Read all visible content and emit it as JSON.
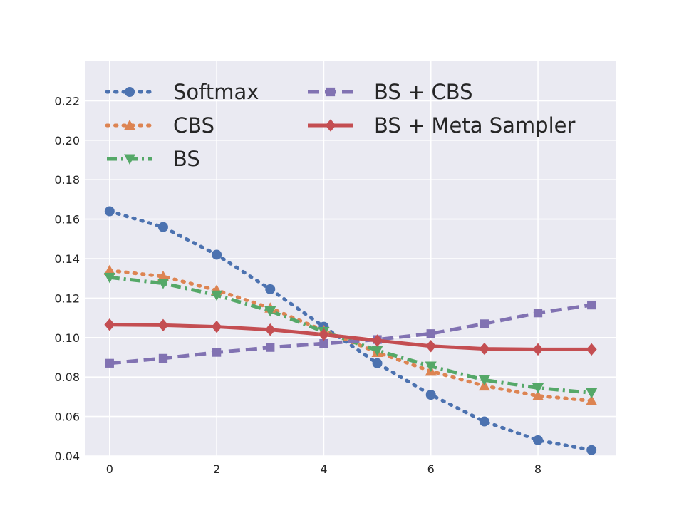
{
  "chart_data": {
    "type": "line",
    "title": "",
    "xlabel": "",
    "ylabel": "",
    "x": [
      0,
      1,
      2,
      3,
      4,
      5,
      6,
      7,
      8,
      9
    ],
    "xlim": [
      -0.45,
      9.45
    ],
    "ylim": [
      0.04,
      0.24
    ],
    "xticks": [
      0,
      2,
      4,
      6,
      8
    ],
    "yticks": [
      0.04,
      0.06,
      0.08,
      0.1,
      0.12,
      0.14,
      0.16,
      0.18,
      0.2,
      0.22
    ],
    "xtick_labels": [
      "0",
      "2",
      "4",
      "6",
      "8"
    ],
    "ytick_labels": [
      "0.04",
      "0.06",
      "0.08",
      "0.10",
      "0.12",
      "0.14",
      "0.16",
      "0.18",
      "0.20",
      "0.22"
    ],
    "grid": true,
    "legend_position": "top",
    "series": [
      {
        "name": "Softmax",
        "color": "#4c72b0",
        "marker": "circle",
        "line_style": "dotted",
        "values": [
          0.164,
          0.156,
          0.142,
          0.1245,
          0.1055,
          0.087,
          0.071,
          0.0575,
          0.048,
          0.043
        ]
      },
      {
        "name": "CBS",
        "color": "#dd8452",
        "marker": "triangle-up",
        "line_style": "dotted",
        "values": [
          0.134,
          0.131,
          0.124,
          0.115,
          0.1035,
          0.0925,
          0.083,
          0.0755,
          0.0705,
          0.068
        ]
      },
      {
        "name": "BS",
        "color": "#55a868",
        "marker": "triangle-down",
        "line_style": "dash-dot",
        "values": [
          0.1305,
          0.1275,
          0.1215,
          0.1135,
          0.103,
          0.0935,
          0.0855,
          0.0785,
          0.0745,
          0.072
        ]
      },
      {
        "name": "BS + CBS",
        "color": "#8172b2",
        "marker": "square",
        "line_style": "dashed",
        "values": [
          0.087,
          0.0895,
          0.0925,
          0.095,
          0.097,
          0.099,
          0.102,
          0.107,
          0.1125,
          0.1165
        ]
      },
      {
        "name": "BS + Meta Sampler",
        "color": "#c44e52",
        "marker": "diamond",
        "line_style": "solid",
        "values": [
          0.1065,
          0.1063,
          0.1055,
          0.104,
          0.1015,
          0.0985,
          0.0957,
          0.0943,
          0.094,
          0.094
        ]
      }
    ]
  }
}
